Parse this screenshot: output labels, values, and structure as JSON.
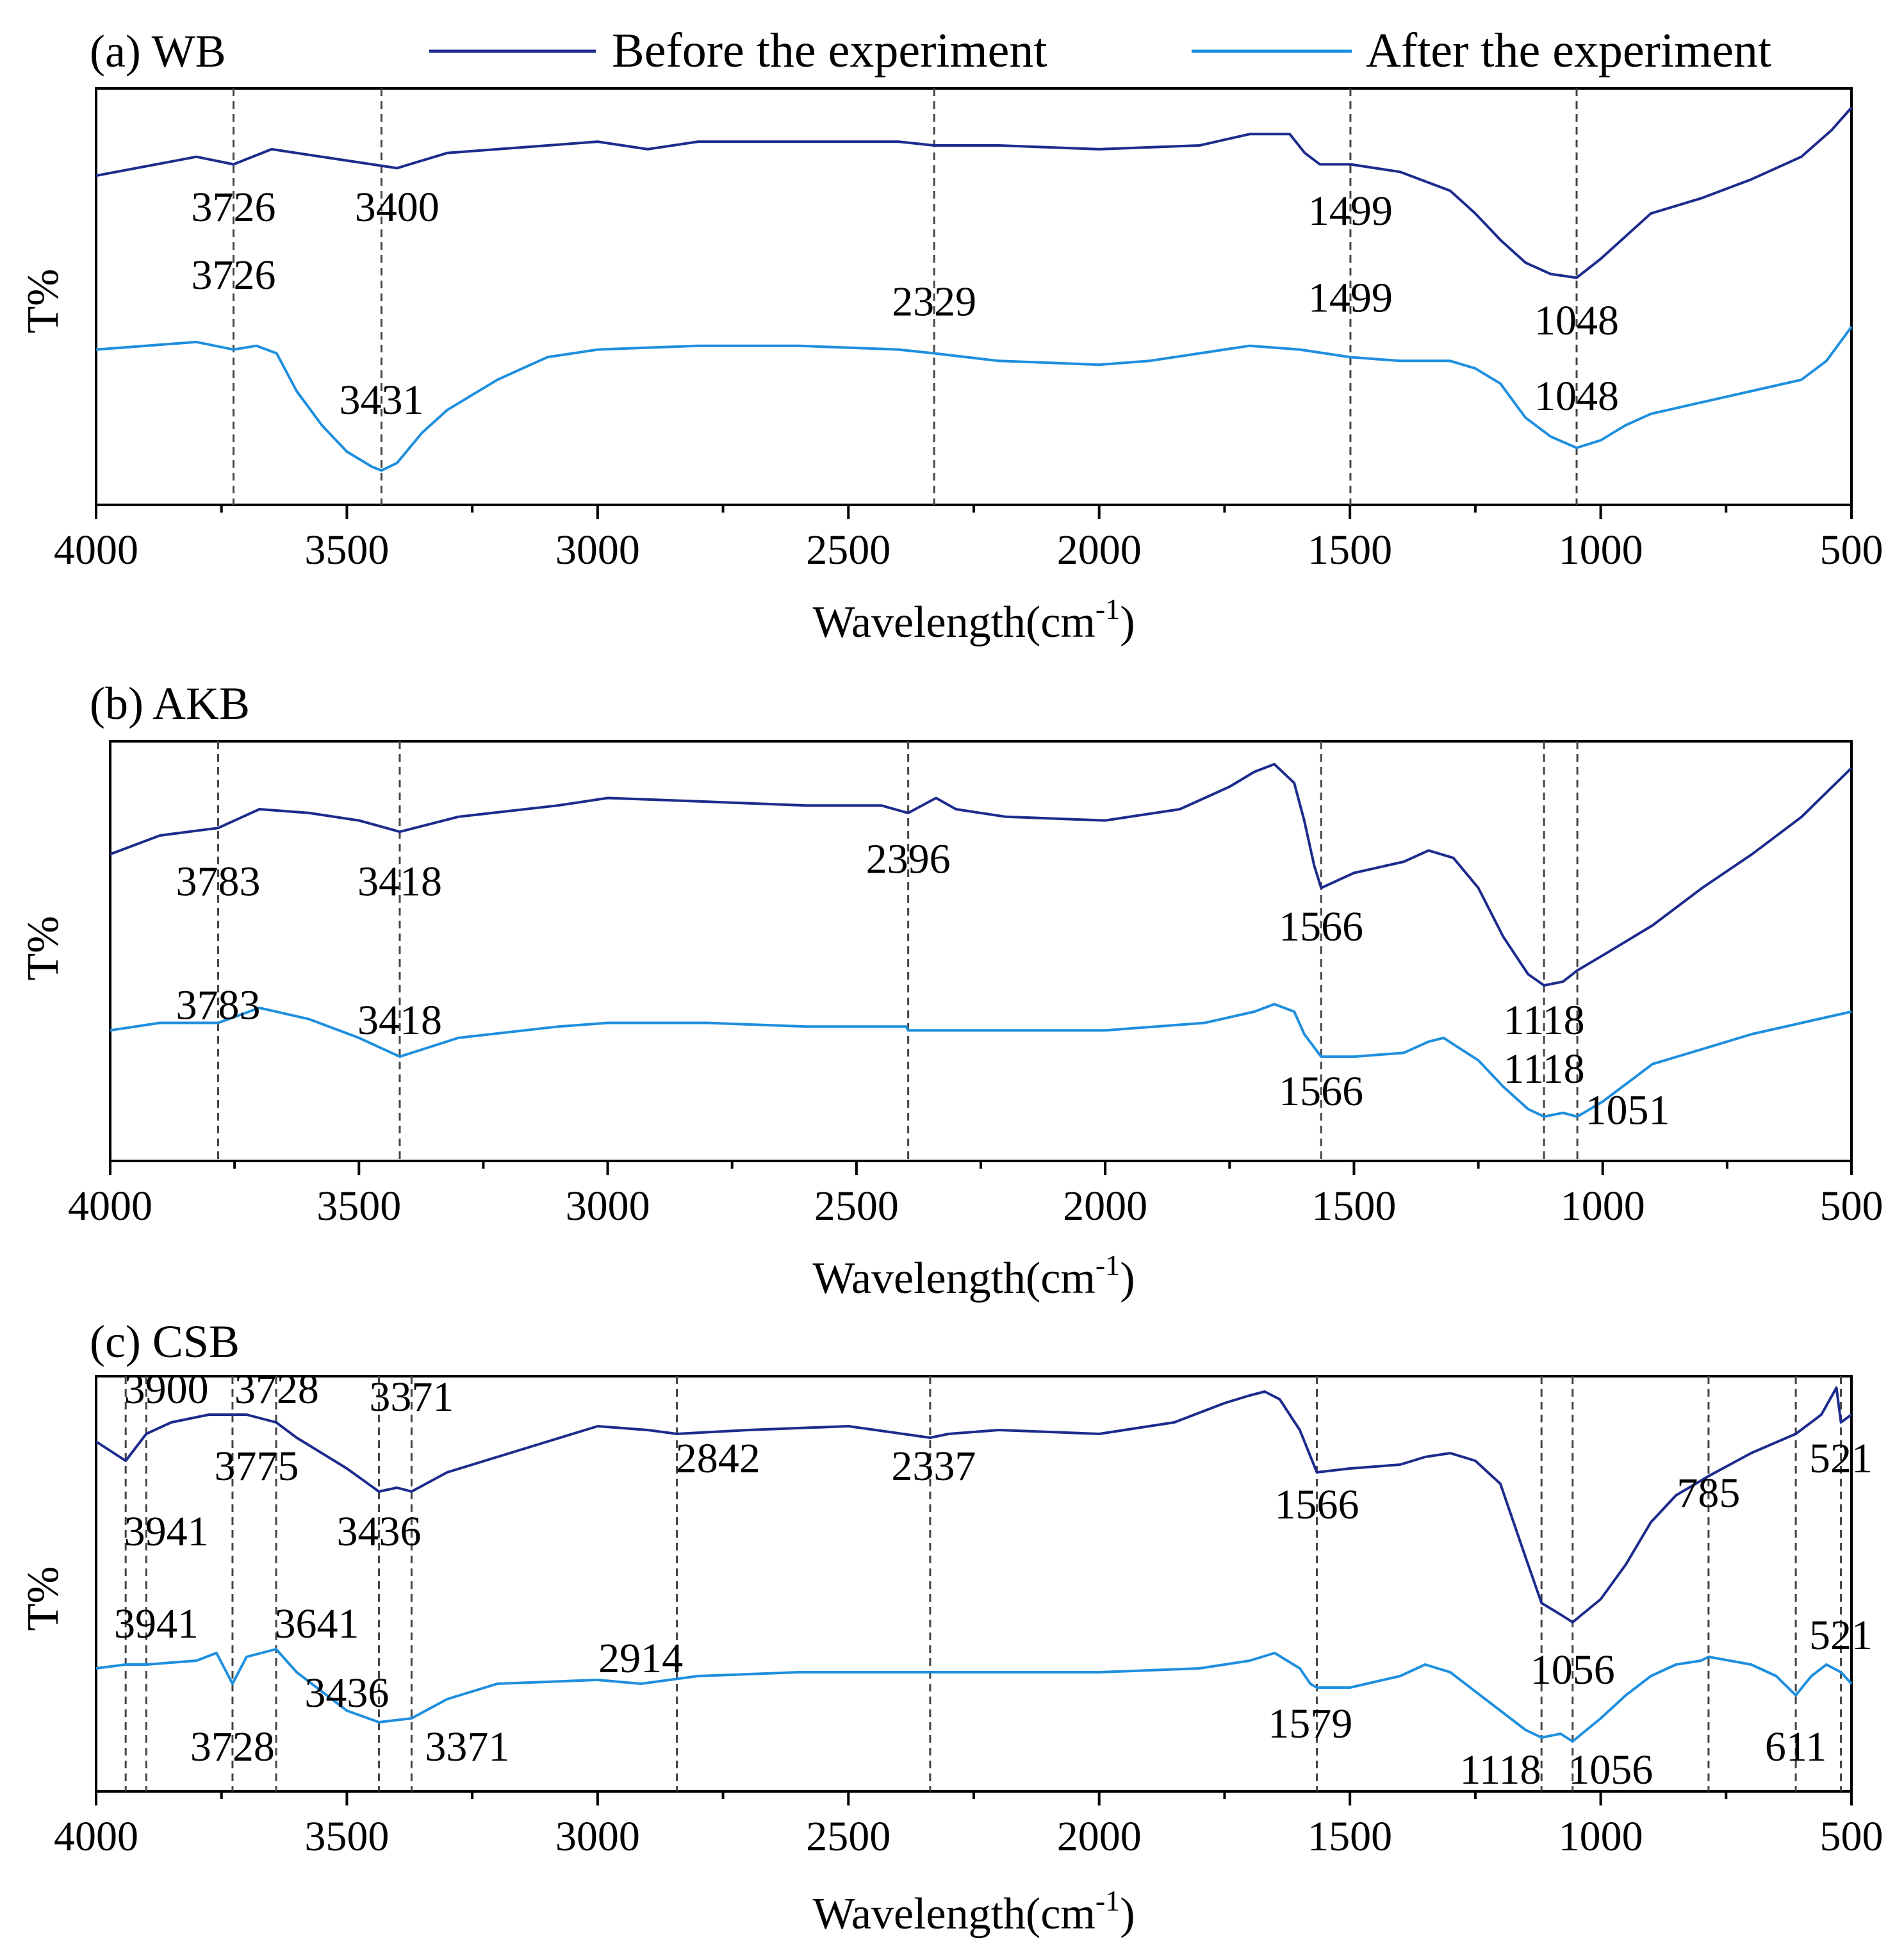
{
  "legend": [
    {
      "name": "Before the experiment",
      "color": "#1d2b8c"
    },
    {
      "name": "After the experiment",
      "color": "#1e8fde"
    }
  ],
  "chart_data": [
    {
      "type": "line",
      "title": "(a) WB",
      "xlabel": "Wavelength(cm",
      "xlabel_sup": "-1",
      "xlabel_end": ")",
      "ylabel": "T%",
      "xlim": [
        4000,
        500
      ],
      "ylim": [
        0,
        100
      ],
      "xticks": [
        "4000",
        "3500",
        "3000",
        "2500",
        "2000",
        "1500",
        "1000",
        "500"
      ],
      "guides": [
        3726,
        3431,
        2329,
        1499,
        1048
      ],
      "series": [
        {
          "name": "Before the experiment",
          "x": [
            4000,
            3800,
            3726,
            3650,
            3500,
            3400,
            3300,
            3200,
            3000,
            2900,
            2800,
            2600,
            2400,
            2329,
            2200,
            2000,
            1800,
            1700,
            1620,
            1590,
            1560,
            1499,
            1400,
            1300,
            1250,
            1200,
            1150,
            1100,
            1048,
            1000,
            950,
            900,
            800,
            700,
            600,
            540,
            500
          ],
          "y": [
            82,
            87,
            85,
            89,
            86,
            84,
            88,
            89,
            91,
            89,
            91,
            91,
            91,
            90,
            90,
            89,
            90,
            93,
            93,
            88,
            85,
            85,
            83,
            78,
            72,
            65,
            59,
            56,
            55,
            60,
            66,
            72,
            76,
            81,
            87,
            94,
            100
          ]
        },
        {
          "name": "After the experiment",
          "x": [
            4000,
            3800,
            3726,
            3680,
            3640,
            3600,
            3550,
            3500,
            3450,
            3431,
            3400,
            3350,
            3300,
            3200,
            3100,
            3000,
            2800,
            2600,
            2400,
            2329,
            2200,
            2000,
            1900,
            1800,
            1700,
            1600,
            1500,
            1400,
            1300,
            1250,
            1200,
            1150,
            1100,
            1048,
            1000,
            950,
            900,
            800,
            700,
            600,
            550,
            500
          ],
          "y": [
            36,
            38,
            36,
            37,
            35,
            25,
            16,
            9,
            5,
            4,
            6,
            14,
            20,
            28,
            34,
            36,
            37,
            37,
            36,
            35,
            33,
            32,
            33,
            35,
            37,
            36,
            34,
            33,
            33,
            31,
            27,
            18,
            13,
            10,
            12,
            16,
            19,
            22,
            25,
            28,
            33,
            42
          ]
        }
      ],
      "annotations": [
        {
          "text": "3726",
          "x": 3726,
          "y": 70
        },
        {
          "text": "3400",
          "x": 3400,
          "y": 70
        },
        {
          "text": "1499",
          "x": 1499,
          "y": 69
        },
        {
          "text": "3726",
          "x": 3726,
          "y": 52
        },
        {
          "text": "2329",
          "x": 2329,
          "y": 45
        },
        {
          "text": "1499",
          "x": 1499,
          "y": 46
        },
        {
          "text": "1048",
          "x": 1048,
          "y": 40
        },
        {
          "text": "3431",
          "x": 3431,
          "y": 19
        },
        {
          "text": "1048",
          "x": 1048,
          "y": 20
        }
      ]
    },
    {
      "type": "line",
      "title": "(b) AKB",
      "xlabel": "Wavelength(cm",
      "xlabel_sup": "-1",
      "xlabel_end": ")",
      "ylabel": "T%",
      "xlim": [
        4000,
        500
      ],
      "ylim": [
        0,
        100
      ],
      "xticks": [
        "4000",
        "3500",
        "3000",
        "2500",
        "2000",
        "1500",
        "1000",
        "500"
      ],
      "guides": [
        3783,
        3418,
        2396,
        1566,
        1118,
        1051
      ],
      "series": [
        {
          "name": "Before the experiment",
          "x": [
            4000,
            3900,
            3783,
            3700,
            3600,
            3500,
            3418,
            3300,
            3100,
            3000,
            2800,
            2600,
            2450,
            2396,
            2340,
            2300,
            2200,
            2000,
            1850,
            1750,
            1700,
            1660,
            1620,
            1600,
            1580,
            1566,
            1500,
            1400,
            1350,
            1300,
            1250,
            1200,
            1150,
            1118,
            1080,
            1051,
            1000,
            900,
            800,
            700,
            600,
            500
          ],
          "y": [
            75,
            80,
            82,
            87,
            86,
            84,
            81,
            85,
            88,
            90,
            89,
            88,
            88,
            86,
            90,
            87,
            85,
            84,
            87,
            93,
            97,
            99,
            94,
            84,
            72,
            66,
            70,
            73,
            76,
            74,
            66,
            53,
            43,
            40,
            41,
            44,
            48,
            56,
            66,
            75,
            85,
            98
          ]
        },
        {
          "name": "After the experiment",
          "x": [
            4000,
            3900,
            3783,
            3700,
            3600,
            3500,
            3418,
            3300,
            3100,
            3000,
            2800,
            2600,
            2400,
            2396,
            2200,
            2000,
            1800,
            1700,
            1660,
            1620,
            1600,
            1566,
            1500,
            1400,
            1350,
            1320,
            1250,
            1200,
            1150,
            1118,
            1080,
            1051,
            1000,
            950,
            900,
            800,
            700,
            600,
            500
          ],
          "y": [
            28,
            30,
            30,
            34,
            31,
            26,
            21,
            26,
            29,
            30,
            30,
            29,
            29,
            28,
            28,
            28,
            30,
            33,
            35,
            33,
            27,
            21,
            21,
            22,
            25,
            26,
            20,
            13,
            7,
            5,
            6,
            5,
            9,
            14,
            19,
            23,
            27,
            30,
            33
          ]
        }
      ],
      "annotations": [
        {
          "text": "3783",
          "x": 3783,
          "y": 64
        },
        {
          "text": "3418",
          "x": 3418,
          "y": 64
        },
        {
          "text": "2396",
          "x": 2396,
          "y": 70
        },
        {
          "text": "1566",
          "x": 1566,
          "y": 52
        },
        {
          "text": "3783",
          "x": 3783,
          "y": 31
        },
        {
          "text": "3418",
          "x": 3418,
          "y": 27
        },
        {
          "text": "1118",
          "x": 1118,
          "y": 27
        },
        {
          "text": "1118",
          "x": 1118,
          "y": 14
        },
        {
          "text": "1566",
          "x": 1566,
          "y": 8
        },
        {
          "text": "1051",
          "x": 950,
          "y": 3
        }
      ]
    },
    {
      "type": "line",
      "title": "(c) CSB",
      "xlabel": "Wavelength(cm",
      "xlabel_sup": "-1",
      "xlabel_end": ")",
      "ylabel": "T%",
      "xlim": [
        4000,
        500
      ],
      "ylim": [
        0,
        100
      ],
      "xticks": [
        "4000",
        "3500",
        "3000",
        "2500",
        "2000",
        "1500",
        "1000",
        "500"
      ],
      "guides": [
        3941,
        3900,
        3728,
        3641,
        3436,
        3371,
        2842,
        2337,
        1566,
        1118,
        1056,
        785,
        611,
        521
      ],
      "series": [
        {
          "name": "Before the experiment",
          "x": [
            4000,
            3941,
            3900,
            3850,
            3775,
            3728,
            3700,
            3641,
            3600,
            3500,
            3436,
            3400,
            3371,
            3300,
            3200,
            3100,
            3000,
            2900,
            2842,
            2700,
            2500,
            2337,
            2300,
            2200,
            2000,
            1850,
            1750,
            1700,
            1670,
            1640,
            1600,
            1566,
            1500,
            1400,
            1350,
            1300,
            1250,
            1200,
            1150,
            1118,
            1080,
            1056,
            1000,
            950,
            900,
            850,
            785,
            700,
            611,
            560,
            530,
            521,
            500
          ],
          "y": [
            85,
            80,
            87,
            90,
            92,
            92,
            92,
            90,
            86,
            78,
            72,
            73,
            72,
            77,
            81,
            85,
            89,
            88,
            87,
            88,
            89,
            86,
            87,
            88,
            87,
            90,
            95,
            97,
            98,
            96,
            88,
            77,
            78,
            79,
            81,
            82,
            80,
            74,
            55,
            43,
            40,
            38,
            44,
            53,
            64,
            71,
            76,
            82,
            87,
            92,
            99,
            90,
            92
          ]
        },
        {
          "name": "After the experiment",
          "x": [
            4000,
            3941,
            3900,
            3800,
            3760,
            3728,
            3700,
            3641,
            3600,
            3500,
            3436,
            3371,
            3300,
            3200,
            3000,
            2914,
            2800,
            2600,
            2400,
            2200,
            2000,
            1800,
            1700,
            1650,
            1600,
            1579,
            1566,
            1500,
            1400,
            1350,
            1300,
            1200,
            1150,
            1118,
            1080,
            1056,
            1000,
            950,
            900,
            850,
            800,
            785,
            700,
            650,
            611,
            580,
            550,
            521,
            500
          ],
          "y": [
            26,
            27,
            27,
            28,
            30,
            22,
            29,
            31,
            25,
            15,
            12,
            13,
            18,
            22,
            23,
            22,
            24,
            25,
            25,
            25,
            25,
            26,
            28,
            30,
            26,
            22,
            21,
            21,
            24,
            27,
            25,
            15,
            10,
            8,
            9,
            7,
            13,
            19,
            24,
            27,
            28,
            29,
            27,
            24,
            19,
            24,
            27,
            25,
            22
          ]
        }
      ],
      "annotations": [
        {
          "text": "3900",
          "x": 3860,
          "y": 95
        },
        {
          "text": "3728",
          "x": 3640,
          "y": 95
        },
        {
          "text": "3371",
          "x": 3371,
          "y": 93
        },
        {
          "text": "3775",
          "x": 3680,
          "y": 75
        },
        {
          "text": "2842",
          "x": 2760,
          "y": 77
        },
        {
          "text": "2337",
          "x": 2330,
          "y": 75
        },
        {
          "text": "1566",
          "x": 1566,
          "y": 65
        },
        {
          "text": "785",
          "x": 785,
          "y": 68
        },
        {
          "text": "521",
          "x": 521,
          "y": 77
        },
        {
          "text": "3941",
          "x": 3860,
          "y": 58
        },
        {
          "text": "3436",
          "x": 3436,
          "y": 58
        },
        {
          "text": "3941",
          "x": 3880,
          "y": 34
        },
        {
          "text": "3641",
          "x": 3560,
          "y": 34
        },
        {
          "text": "2914",
          "x": 2914,
          "y": 25
        },
        {
          "text": "1056",
          "x": 1056,
          "y": 22
        },
        {
          "text": "521",
          "x": 521,
          "y": 31
        },
        {
          "text": "3436",
          "x": 3500,
          "y": 16
        },
        {
          "text": "1579",
          "x": 1579,
          "y": 8
        },
        {
          "text": "3728",
          "x": 3728,
          "y": 2
        },
        {
          "text": "3371",
          "x": 3260,
          "y": 2
        },
        {
          "text": "611",
          "x": 611,
          "y": 2
        },
        {
          "text": "1118",
          "x": 1200,
          "y": -4
        },
        {
          "text": "1056",
          "x": 980,
          "y": -4
        }
      ]
    }
  ]
}
